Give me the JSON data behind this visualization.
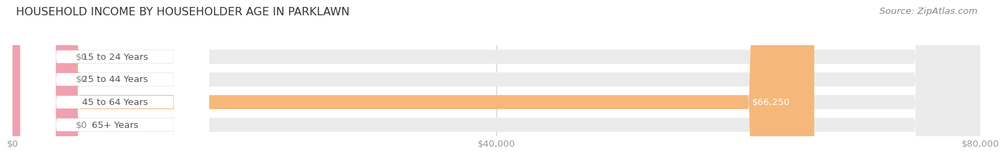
{
  "title": "HOUSEHOLD INCOME BY HOUSEHOLDER AGE IN PARKLAWN",
  "source": "Source: ZipAtlas.com",
  "categories": [
    "15 to 24 Years",
    "25 to 44 Years",
    "45 to 64 Years",
    "65+ Years"
  ],
  "values": [
    0,
    0,
    66250,
    0
  ],
  "bar_colors": [
    "#a8a8d8",
    "#f0a0b0",
    "#f5b87a",
    "#f0a0b0"
  ],
  "bar_bg_color": "#ebebeb",
  "label_bg_color": "#ffffff",
  "value_label_colors": [
    "#888888",
    "#888888",
    "#ffffff",
    "#888888"
  ],
  "xlim": [
    0,
    80000
  ],
  "xticks": [
    0,
    40000,
    80000
  ],
  "xtick_labels": [
    "$0",
    "$40,000",
    "$80,000"
  ],
  "bar_height": 0.62,
  "bg_color": "#ffffff",
  "title_fontsize": 11.5,
  "tick_fontsize": 9.5,
  "label_fontsize": 9.5,
  "category_fontsize": 9.5,
  "source_fontsize": 9.5,
  "grid_color": "#cccccc",
  "category_text_color": "#555555",
  "value_text_color_outside": "#888888"
}
